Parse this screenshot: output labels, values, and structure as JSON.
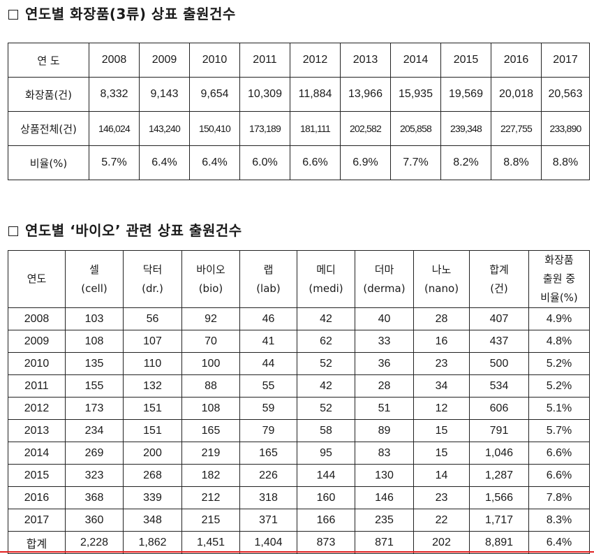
{
  "section1": {
    "title": "연도별 화장품(3류) 상표 출원건수",
    "header_label": "연 도",
    "years": [
      "2008",
      "2009",
      "2010",
      "2011",
      "2012",
      "2013",
      "2014",
      "2015",
      "2016",
      "2017"
    ],
    "rows": [
      {
        "label": "화장품(건)",
        "values": [
          "8,332",
          "9,143",
          "9,654",
          "10,309",
          "11,884",
          "13,966",
          "15,935",
          "19,569",
          "20,018",
          "20,563"
        ]
      },
      {
        "label": "상품전체(건)",
        "values": [
          "146,024",
          "143,240",
          "150,410",
          "173,189",
          "181,111",
          "202,582",
          "205,858",
          "239,348",
          "227,755",
          "233,890"
        ]
      },
      {
        "label": "비율(%)",
        "values": [
          "5.7%",
          "6.4%",
          "6.4%",
          "6.0%",
          "6.6%",
          "6.9%",
          "7.7%",
          "8.2%",
          "8.8%",
          "8.8%"
        ]
      }
    ]
  },
  "section2": {
    "title": "연도별 ‘바이오’ 관련 상표 출원건수",
    "headers": [
      {
        "line1": "연도"
      },
      {
        "line1": "셀",
        "line2": "(cell)"
      },
      {
        "line1": "닥터",
        "line2": "(dr.)"
      },
      {
        "line1": "바이오",
        "line2": "(bio)"
      },
      {
        "line1": "랩",
        "line2": "(lab)"
      },
      {
        "line1": "메디",
        "line2": "(medi)"
      },
      {
        "line1": "더마",
        "line2": "(derma)"
      },
      {
        "line1": "나노",
        "line2": "(nano)"
      },
      {
        "line1": "합계",
        "line2": "(건)"
      },
      {
        "line1": "화장품",
        "line2": "출원 중",
        "line3": "비율(%)"
      }
    ],
    "rows": [
      [
        "2008",
        "103",
        "56",
        "92",
        "46",
        "42",
        "40",
        "28",
        "407",
        "4.9%"
      ],
      [
        "2009",
        "108",
        "107",
        "70",
        "41",
        "62",
        "33",
        "16",
        "437",
        "4.8%"
      ],
      [
        "2010",
        "135",
        "110",
        "100",
        "44",
        "52",
        "36",
        "23",
        "500",
        "5.2%"
      ],
      [
        "2011",
        "155",
        "132",
        "88",
        "55",
        "42",
        "28",
        "34",
        "534",
        "5.2%"
      ],
      [
        "2012",
        "173",
        "151",
        "108",
        "59",
        "52",
        "51",
        "12",
        "606",
        "5.1%"
      ],
      [
        "2013",
        "234",
        "151",
        "165",
        "79",
        "58",
        "89",
        "15",
        "791",
        "5.7%"
      ],
      [
        "2014",
        "269",
        "200",
        "219",
        "165",
        "95",
        "83",
        "15",
        "1,046",
        "6.6%"
      ],
      [
        "2015",
        "323",
        "268",
        "182",
        "226",
        "144",
        "130",
        "14",
        "1,287",
        "6.6%"
      ],
      [
        "2016",
        "368",
        "339",
        "212",
        "318",
        "160",
        "146",
        "23",
        "1,566",
        "7.8%"
      ],
      [
        "2017",
        "360",
        "348",
        "215",
        "371",
        "166",
        "235",
        "22",
        "1,717",
        "8.3%"
      ]
    ],
    "total_row": [
      "합계",
      "2,228",
      "1,862",
      "1,451",
      "1,404",
      "873",
      "871",
      "202",
      "8,891",
      "6.4%"
    ]
  }
}
